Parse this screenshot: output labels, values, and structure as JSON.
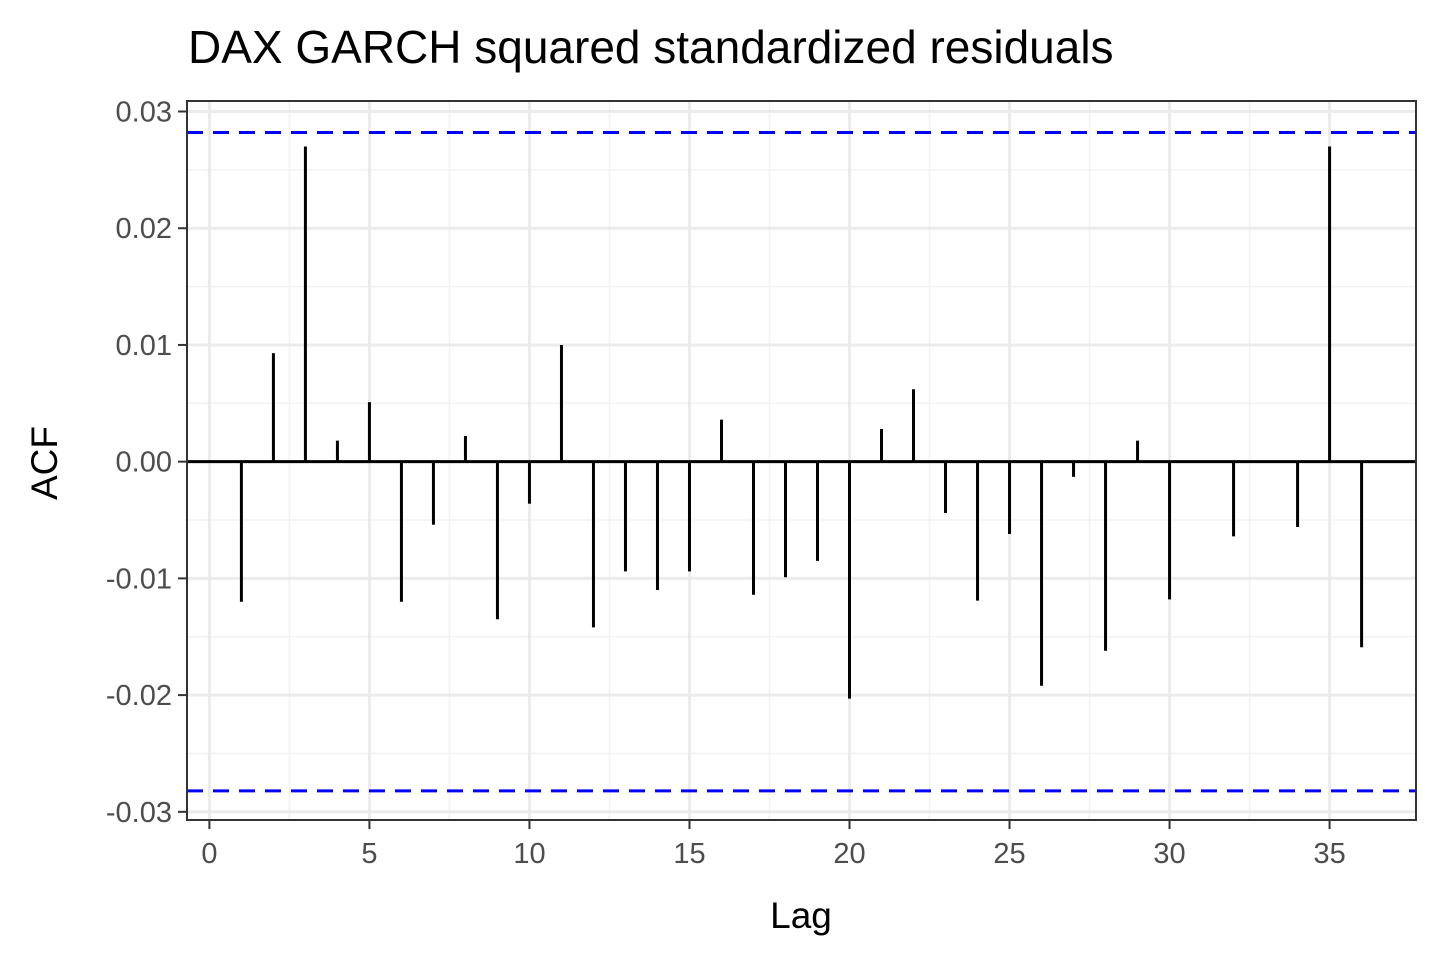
{
  "chart_data": {
    "type": "bar",
    "title": "DAX GARCH squared standardized residuals",
    "xlabel": "Lag",
    "ylabel": "ACF",
    "xlim": [
      -0.7,
      37.7
    ],
    "ylim": [
      -0.0307,
      0.0309
    ],
    "xticks": [
      0,
      5,
      10,
      15,
      20,
      25,
      30,
      35
    ],
    "xtick_labels": [
      "0",
      "5",
      "10",
      "15",
      "20",
      "25",
      "30",
      "35"
    ],
    "yticks": [
      -0.03,
      -0.02,
      -0.01,
      0.0,
      0.01,
      0.02,
      0.03
    ],
    "ytick_labels": [
      "-0.03",
      "-0.02",
      "-0.01",
      "0.00",
      "0.01",
      "0.02",
      "0.03"
    ],
    "grid": true,
    "lag": [
      1,
      2,
      3,
      4,
      5,
      6,
      7,
      8,
      9,
      10,
      11,
      12,
      13,
      14,
      15,
      16,
      17,
      18,
      19,
      20,
      21,
      22,
      23,
      24,
      25,
      26,
      27,
      28,
      29,
      30,
      31,
      32,
      33,
      34,
      35,
      36
    ],
    "acf": [
      -0.012,
      0.0093,
      0.027,
      0.0018,
      0.0051,
      -0.012,
      -0.0054,
      0.0022,
      -0.0135,
      -0.0036,
      0.01,
      -0.0142,
      -0.0094,
      -0.011,
      -0.0094,
      0.0036,
      -0.0114,
      -0.0099,
      -0.0085,
      -0.0203,
      0.0028,
      0.0062,
      -0.0044,
      -0.0119,
      -0.0062,
      -0.0192,
      -0.0013,
      -0.0162,
      0.0018,
      -0.0118,
      0.0,
      -0.0064,
      0.0,
      -0.0056,
      0.027,
      -0.0159
    ],
    "confidence_bounds": [
      0.0282,
      -0.0282
    ],
    "confidence_color": "#0000ff",
    "bar_color": "#000000"
  }
}
